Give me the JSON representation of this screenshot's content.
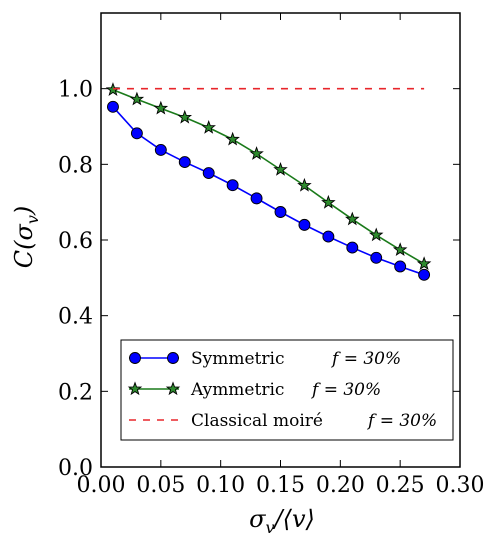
{
  "chart_data": {
    "type": "line",
    "xlabel": "σv/⟨v⟩",
    "ylabel": "C(σv)",
    "xlim": [
      0.0,
      0.3
    ],
    "ylim": [
      0.0,
      1.2
    ],
    "xticks": [
      "0.00",
      "0.05",
      "0.10",
      "0.15",
      "0.20",
      "0.25",
      "0.30"
    ],
    "yticks": [
      "0.0",
      "0.2",
      "0.4",
      "0.6",
      "0.8",
      "1.0"
    ],
    "grid": false,
    "legend_position": "lower-left",
    "series": [
      {
        "name": "Symmetric",
        "annotation": "f = 30%",
        "color": "#0000ff",
        "line_color": "#0000ff",
        "marker": "circle",
        "x": [
          0.01,
          0.03,
          0.05,
          0.07,
          0.09,
          0.11,
          0.13,
          0.15,
          0.17,
          0.19,
          0.21,
          0.23,
          0.25,
          0.27
        ],
        "y": [
          0.952,
          0.882,
          0.838,
          0.806,
          0.777,
          0.745,
          0.71,
          0.674,
          0.64,
          0.609,
          0.58,
          0.553,
          0.53,
          0.508
        ]
      },
      {
        "name": "Aymmetric",
        "annotation": "f = 30%",
        "color": "#2e8b2e",
        "line_color": "#1a7a1a",
        "marker": "star",
        "x": [
          0.01,
          0.03,
          0.05,
          0.07,
          0.09,
          0.11,
          0.13,
          0.15,
          0.17,
          0.19,
          0.21,
          0.23,
          0.25,
          0.27
        ],
        "y": [
          0.997,
          0.972,
          0.948,
          0.924,
          0.897,
          0.866,
          0.828,
          0.786,
          0.744,
          0.699,
          0.655,
          0.613,
          0.574,
          0.537
        ]
      },
      {
        "name": "Classical moiré",
        "annotation": "f = 30%",
        "color": "#e8262b",
        "line_color": "#e8262b",
        "marker": "none",
        "dash": true,
        "x": [
          0.01,
          0.27
        ],
        "y": [
          1.0,
          1.0
        ]
      }
    ]
  }
}
